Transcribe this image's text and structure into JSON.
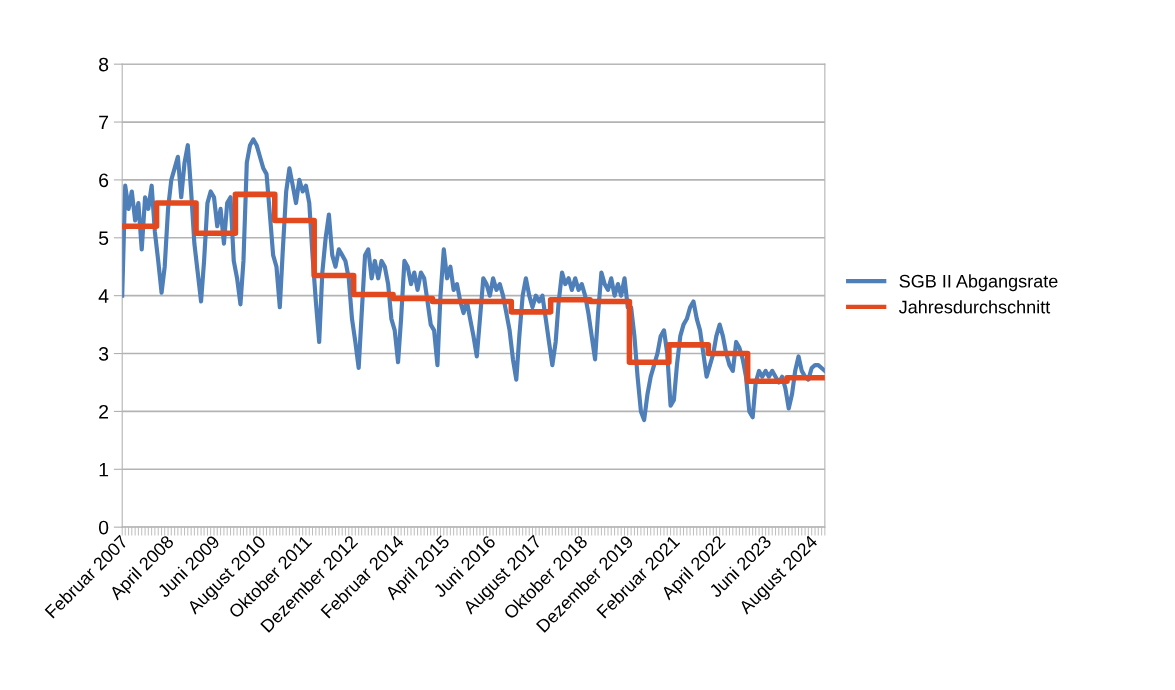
{
  "chart_data": {
    "type": "line",
    "x": [
      "2007-02",
      "2007-03",
      "2007-04",
      "2007-05",
      "2007-06",
      "2007-07",
      "2007-08",
      "2007-09",
      "2007-10",
      "2007-11",
      "2007-12",
      "2008-01",
      "2008-02",
      "2008-03",
      "2008-04",
      "2008-05",
      "2008-06",
      "2008-07",
      "2008-08",
      "2008-09",
      "2008-10",
      "2008-11",
      "2008-12",
      "2009-01",
      "2009-02",
      "2009-03",
      "2009-04",
      "2009-05",
      "2009-06",
      "2009-07",
      "2009-08",
      "2009-09",
      "2009-10",
      "2009-11",
      "2009-12",
      "2010-01",
      "2010-02",
      "2010-03",
      "2010-04",
      "2010-05",
      "2010-06",
      "2010-07",
      "2010-08",
      "2010-09",
      "2010-10",
      "2010-11",
      "2010-12",
      "2011-01",
      "2011-02",
      "2011-03",
      "2011-04",
      "2011-05",
      "2011-06",
      "2011-07",
      "2011-08",
      "2011-09",
      "2011-10",
      "2011-11",
      "2011-12",
      "2012-01",
      "2012-02",
      "2012-03",
      "2012-04",
      "2012-05",
      "2012-06",
      "2012-07",
      "2012-08",
      "2012-09",
      "2012-10",
      "2012-11",
      "2012-12",
      "2013-01",
      "2013-02",
      "2013-03",
      "2013-04",
      "2013-05",
      "2013-06",
      "2013-07",
      "2013-08",
      "2013-09",
      "2013-10",
      "2013-11",
      "2013-12",
      "2014-01",
      "2014-02",
      "2014-03",
      "2014-04",
      "2014-05",
      "2014-06",
      "2014-07",
      "2014-08",
      "2014-09",
      "2014-10",
      "2014-11",
      "2014-12",
      "2015-01",
      "2015-02",
      "2015-03",
      "2015-04",
      "2015-05",
      "2015-06",
      "2015-07",
      "2015-08",
      "2015-09",
      "2015-10",
      "2015-11",
      "2015-12",
      "2016-01",
      "2016-02",
      "2016-03",
      "2016-04",
      "2016-05",
      "2016-06",
      "2016-07",
      "2016-08",
      "2016-09",
      "2016-10",
      "2016-11",
      "2016-12",
      "2017-01",
      "2017-02",
      "2017-03",
      "2017-04",
      "2017-05",
      "2017-06",
      "2017-07",
      "2017-08",
      "2017-09",
      "2017-10",
      "2017-11",
      "2017-12",
      "2018-01",
      "2018-02",
      "2018-03",
      "2018-04",
      "2018-05",
      "2018-06",
      "2018-07",
      "2018-08",
      "2018-09",
      "2018-10",
      "2018-11",
      "2018-12",
      "2019-01",
      "2019-02",
      "2019-03",
      "2019-04",
      "2019-05",
      "2019-06",
      "2019-07",
      "2019-08",
      "2019-09",
      "2019-10",
      "2019-11",
      "2019-12",
      "2020-01",
      "2020-02",
      "2020-03",
      "2020-04",
      "2020-05",
      "2020-06",
      "2020-07",
      "2020-08",
      "2020-09",
      "2020-10",
      "2020-11",
      "2020-12",
      "2021-01",
      "2021-02",
      "2021-03",
      "2021-04",
      "2021-05",
      "2021-06",
      "2021-07",
      "2021-08",
      "2021-09",
      "2021-10",
      "2021-11",
      "2021-12",
      "2022-01",
      "2022-02",
      "2022-03",
      "2022-04",
      "2022-05",
      "2022-06",
      "2022-07",
      "2022-08",
      "2022-09",
      "2022-10",
      "2022-11",
      "2022-12",
      "2023-01",
      "2023-02",
      "2023-03",
      "2023-04",
      "2023-05",
      "2023-06",
      "2023-07",
      "2023-08",
      "2023-09",
      "2023-10",
      "2023-11",
      "2023-12",
      "2024-01",
      "2024-02",
      "2024-03",
      "2024-04",
      "2024-05",
      "2024-06",
      "2024-07",
      "2024-08",
      "2024-09",
      "2024-10",
      "2024-11",
      "2024-12"
    ],
    "xlim": [
      "2007-02",
      "2024-12"
    ],
    "xticks": [
      {
        "value": "2007-02",
        "label": "Februar 2007"
      },
      {
        "value": "2008-04",
        "label": "April 2008"
      },
      {
        "value": "2009-06",
        "label": "Juni 2009"
      },
      {
        "value": "2010-08",
        "label": "August 2010"
      },
      {
        "value": "2011-10",
        "label": "Oktober 2011"
      },
      {
        "value": "2012-12",
        "label": "Dezember 2012"
      },
      {
        "value": "2014-02",
        "label": "Februar 2014"
      },
      {
        "value": "2015-04",
        "label": "April 2015"
      },
      {
        "value": "2016-06",
        "label": "Juni 2016"
      },
      {
        "value": "2017-08",
        "label": "August 2017"
      },
      {
        "value": "2018-10",
        "label": "Oktober 2018"
      },
      {
        "value": "2019-12",
        "label": "Dezember 2019"
      },
      {
        "value": "2021-02",
        "label": "Februar 2021"
      },
      {
        "value": "2022-04",
        "label": "April 2022"
      },
      {
        "value": "2023-06",
        "label": "Juni 2023"
      },
      {
        "value": "2024-08",
        "label": "August 2024"
      }
    ],
    "series": [
      {
        "name": "SGB II Abgangsrate",
        "type": "line",
        "color": "#4f7fb8",
        "values": [
          4.0,
          5.9,
          5.5,
          5.8,
          5.3,
          5.6,
          4.8,
          5.7,
          5.5,
          5.9,
          5.1,
          4.6,
          4.05,
          4.5,
          5.5,
          6.0,
          6.2,
          6.4,
          5.7,
          6.3,
          6.6,
          5.8,
          4.9,
          4.4,
          3.9,
          4.6,
          5.6,
          5.8,
          5.7,
          5.2,
          5.5,
          4.9,
          5.6,
          5.7,
          4.6,
          4.3,
          3.85,
          4.6,
          6.3,
          6.6,
          6.7,
          6.6,
          6.4,
          6.2,
          6.1,
          5.4,
          4.7,
          4.5,
          3.8,
          4.8,
          5.8,
          6.2,
          5.9,
          5.6,
          6.0,
          5.8,
          5.9,
          5.6,
          4.7,
          3.9,
          3.2,
          4.4,
          5.0,
          5.4,
          4.7,
          4.5,
          4.8,
          4.7,
          4.6,
          4.3,
          3.6,
          3.2,
          2.75,
          3.7,
          4.7,
          4.8,
          4.3,
          4.6,
          4.3,
          4.6,
          4.5,
          4.2,
          3.6,
          3.4,
          2.85,
          3.6,
          4.6,
          4.5,
          4.2,
          4.4,
          4.1,
          4.4,
          4.3,
          3.9,
          3.5,
          3.4,
          2.8,
          4.0,
          4.8,
          4.3,
          4.5,
          4.1,
          4.2,
          3.9,
          3.7,
          3.9,
          3.6,
          3.3,
          2.95,
          3.6,
          4.3,
          4.2,
          4.0,
          4.3,
          4.1,
          4.2,
          4.0,
          3.7,
          3.4,
          2.9,
          2.55,
          3.3,
          4.0,
          4.3,
          4.0,
          3.8,
          4.0,
          3.9,
          4.0,
          3.6,
          3.2,
          2.8,
          3.2,
          3.9,
          4.4,
          4.2,
          4.3,
          4.1,
          4.3,
          4.1,
          4.2,
          4.0,
          3.7,
          3.3,
          2.9,
          3.7,
          4.4,
          4.2,
          4.1,
          4.3,
          4.0,
          4.2,
          4.0,
          4.3,
          3.8,
          3.8,
          3.3,
          2.6,
          2.0,
          1.85,
          2.3,
          2.6,
          2.8,
          3.0,
          3.3,
          3.4,
          3.0,
          2.1,
          2.2,
          2.8,
          3.3,
          3.5,
          3.6,
          3.8,
          3.9,
          3.6,
          3.4,
          3.0,
          2.6,
          2.8,
          3.0,
          3.3,
          3.5,
          3.3,
          3.0,
          2.8,
          2.7,
          3.2,
          3.1,
          2.9,
          2.6,
          2.0,
          1.9,
          2.5,
          2.7,
          2.6,
          2.7,
          2.6,
          2.7,
          2.6,
          2.5,
          2.6,
          2.4,
          2.05,
          2.3,
          2.7,
          2.95,
          2.7,
          2.6,
          2.55,
          2.75,
          2.8,
          2.8,
          2.75,
          2.7
        ]
      },
      {
        "name": "Jahresdurchschnitt",
        "type": "step",
        "color": "#e2491f",
        "values": [
          5.2,
          5.2,
          5.2,
          5.2,
          5.2,
          5.2,
          5.2,
          5.2,
          5.2,
          5.2,
          5.2,
          5.6,
          5.6,
          5.6,
          5.6,
          5.6,
          5.6,
          5.6,
          5.6,
          5.6,
          5.6,
          5.6,
          5.6,
          5.08,
          5.08,
          5.08,
          5.08,
          5.08,
          5.08,
          5.08,
          5.08,
          5.08,
          5.08,
          5.08,
          5.08,
          5.75,
          5.75,
          5.75,
          5.75,
          5.75,
          5.75,
          5.75,
          5.75,
          5.75,
          5.75,
          5.75,
          5.75,
          5.3,
          5.3,
          5.3,
          5.3,
          5.3,
          5.3,
          5.3,
          5.3,
          5.3,
          5.3,
          5.3,
          5.3,
          4.35,
          4.35,
          4.35,
          4.35,
          4.35,
          4.35,
          4.35,
          4.35,
          4.35,
          4.35,
          4.35,
          4.35,
          4.02,
          4.02,
          4.02,
          4.02,
          4.02,
          4.02,
          4.02,
          4.02,
          4.02,
          4.02,
          4.02,
          4.02,
          3.95,
          3.95,
          3.95,
          3.95,
          3.95,
          3.95,
          3.95,
          3.95,
          3.95,
          3.95,
          3.95,
          3.95,
          3.9,
          3.9,
          3.9,
          3.9,
          3.9,
          3.9,
          3.9,
          3.9,
          3.9,
          3.9,
          3.9,
          3.9,
          3.9,
          3.9,
          3.9,
          3.9,
          3.9,
          3.9,
          3.9,
          3.9,
          3.9,
          3.9,
          3.9,
          3.9,
          3.72,
          3.72,
          3.72,
          3.72,
          3.72,
          3.72,
          3.72,
          3.72,
          3.72,
          3.72,
          3.72,
          3.72,
          3.93,
          3.93,
          3.93,
          3.93,
          3.93,
          3.93,
          3.93,
          3.93,
          3.93,
          3.93,
          3.93,
          3.93,
          3.9,
          3.9,
          3.9,
          3.9,
          3.9,
          3.9,
          3.9,
          3.9,
          3.9,
          3.9,
          3.9,
          3.9,
          2.85,
          2.85,
          2.85,
          2.85,
          2.85,
          2.85,
          2.85,
          2.85,
          2.85,
          2.85,
          2.85,
          2.85,
          3.15,
          3.15,
          3.15,
          3.15,
          3.15,
          3.15,
          3.15,
          3.15,
          3.15,
          3.15,
          3.15,
          3.15,
          3.0,
          3.0,
          3.0,
          3.0,
          3.0,
          3.0,
          3.0,
          3.0,
          3.0,
          3.0,
          3.0,
          3.0,
          2.52,
          2.52,
          2.52,
          2.52,
          2.52,
          2.52,
          2.52,
          2.52,
          2.52,
          2.52,
          2.52,
          2.52,
          2.58,
          2.58,
          2.58,
          2.58,
          2.58,
          2.58,
          2.58,
          2.58,
          2.58,
          2.58,
          2.58,
          2.58
        ]
      }
    ],
    "ylim": [
      0,
      8
    ],
    "yticks": [
      0,
      1,
      2,
      3,
      4,
      5,
      6,
      7,
      8
    ],
    "grid": "y",
    "legend": "right",
    "marker": "none",
    "line_style": "solid"
  }
}
